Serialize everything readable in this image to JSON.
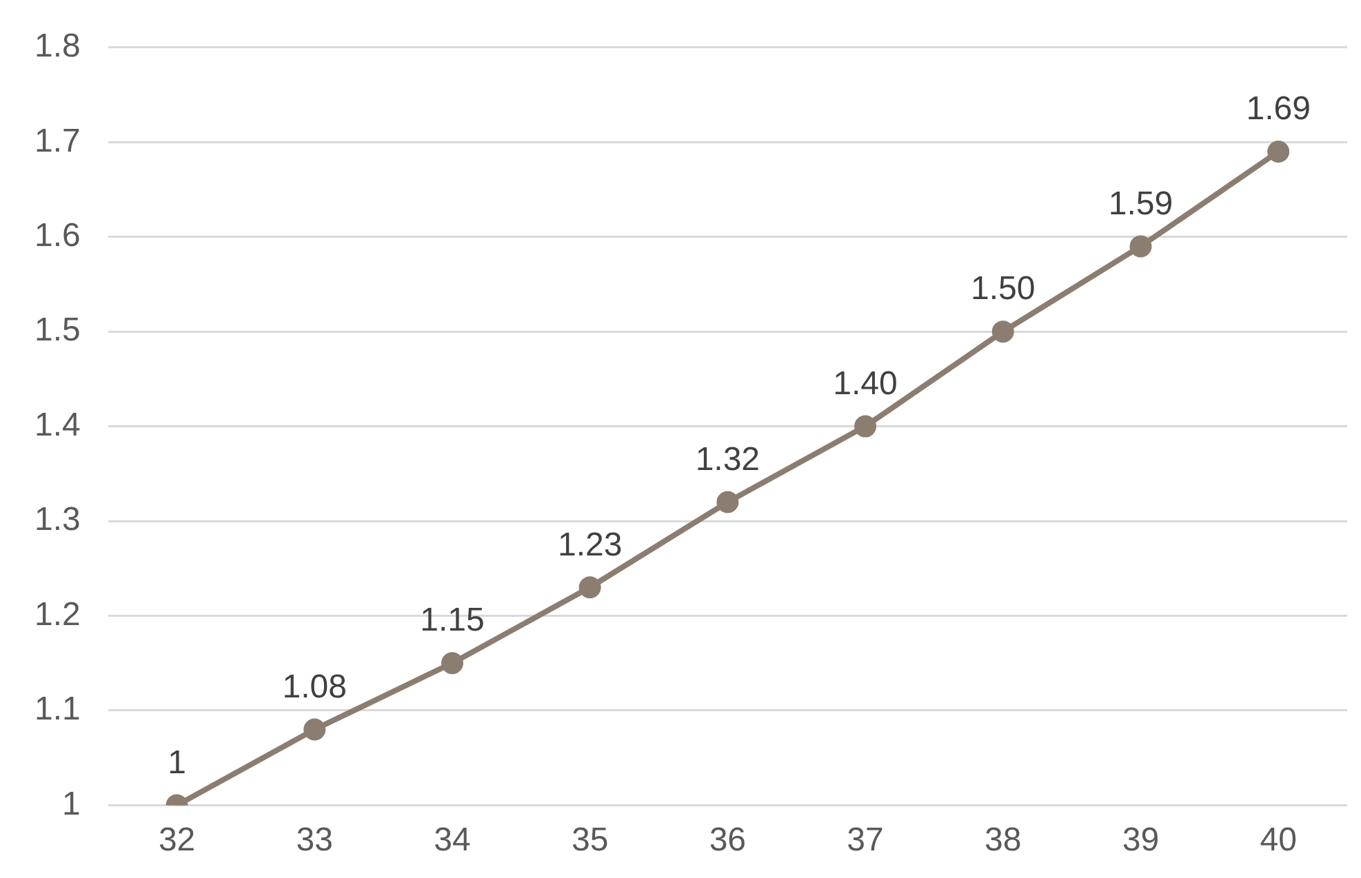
{
  "chart_data": {
    "type": "line",
    "categories": [
      "32",
      "33",
      "34",
      "35",
      "36",
      "37",
      "38",
      "39",
      "40"
    ],
    "series": [
      {
        "color": "#8b7d70",
        "values": [
          1,
          1.08,
          1.15,
          1.23,
          1.32,
          1.4,
          1.5,
          1.59,
          1.69
        ],
        "value_labels": [
          "1",
          "1.08",
          "1.15",
          "1.23",
          "1.32",
          "1.40",
          "1.50",
          "1.59",
          "1.69"
        ]
      }
    ],
    "ylim": [
      1,
      1.8
    ],
    "yticks": [
      1,
      1.1,
      1.2,
      1.3,
      1.4,
      1.5,
      1.6,
      1.7,
      1.8
    ],
    "grid": "y",
    "legend": false,
    "marker": "circle",
    "line_style": "solid"
  }
}
